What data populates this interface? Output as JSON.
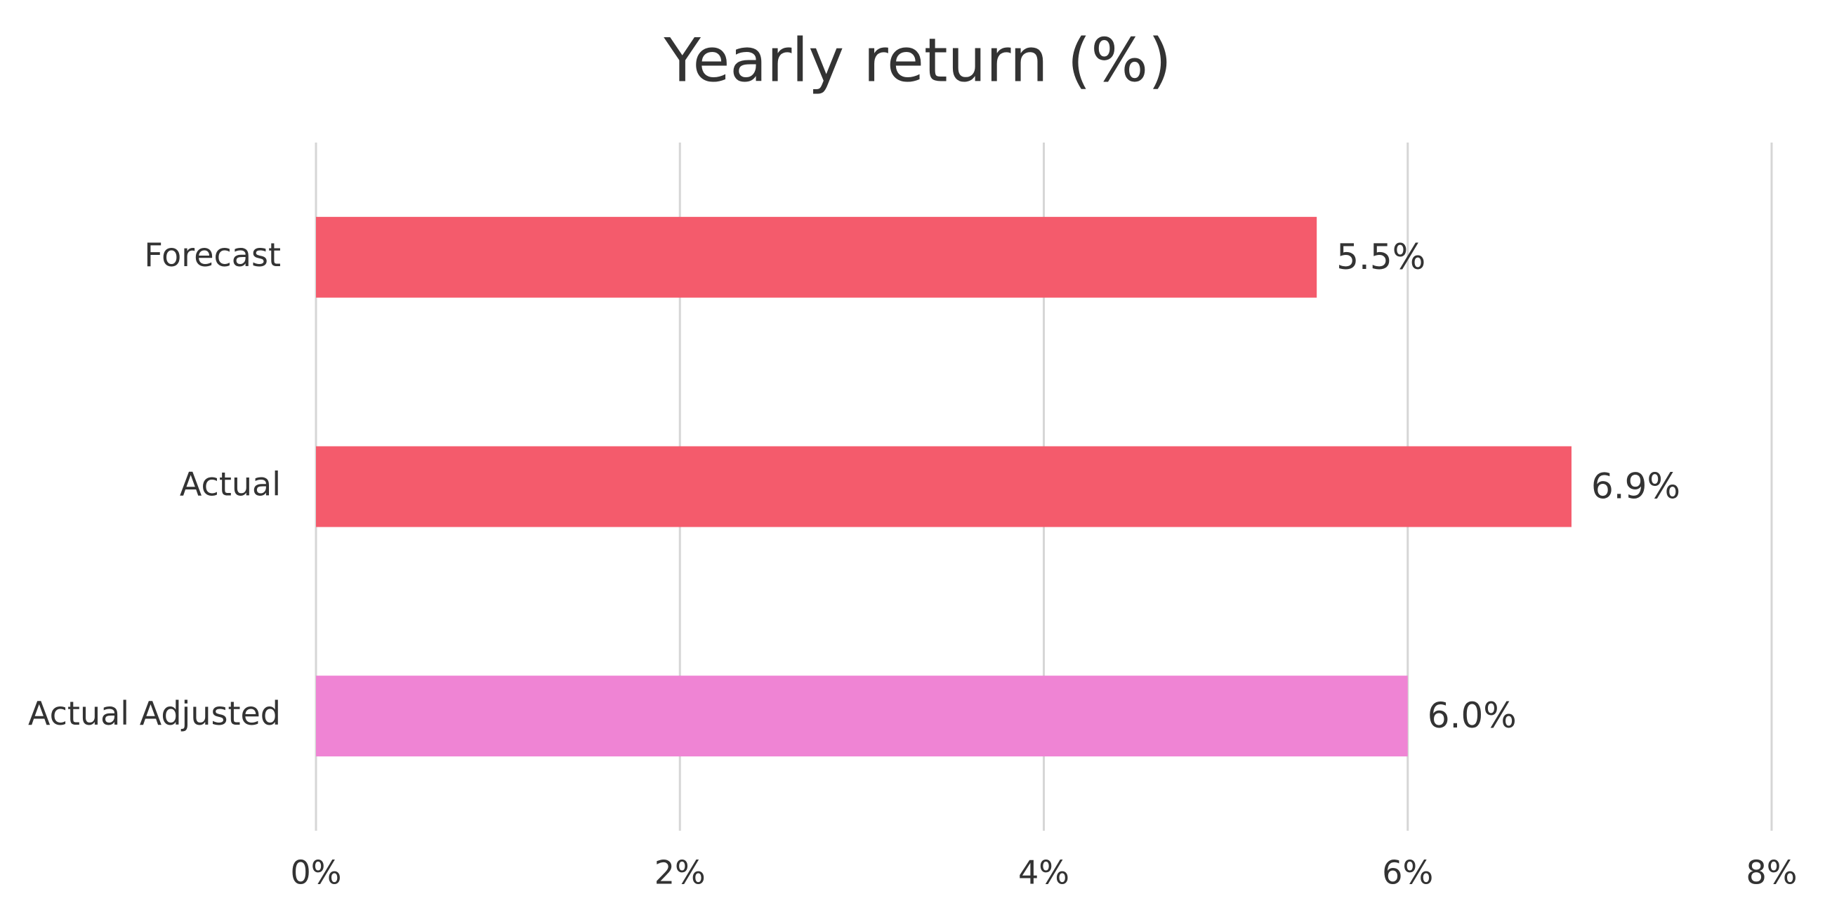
{
  "chart_data": {
    "type": "hbar",
    "title": "Yearly return (%)",
    "categories": [
      "Forecast",
      "Actual",
      "Actual Adjusted"
    ],
    "values": [
      5.5,
      6.9,
      6.0
    ],
    "value_labels": [
      "5.5%",
      "6.9%",
      "6.0%"
    ],
    "colors": [
      "#f45b6c",
      "#f45b6c",
      "#ef84d4"
    ],
    "xlim": [
      0,
      8
    ],
    "xticks": [
      {
        "value": 0,
        "label": "0%"
      },
      {
        "value": 2,
        "label": "2%"
      },
      {
        "value": 4,
        "label": "4%"
      },
      {
        "value": 6,
        "label": "6%"
      },
      {
        "value": 8,
        "label": "8%"
      }
    ],
    "grid": true
  }
}
